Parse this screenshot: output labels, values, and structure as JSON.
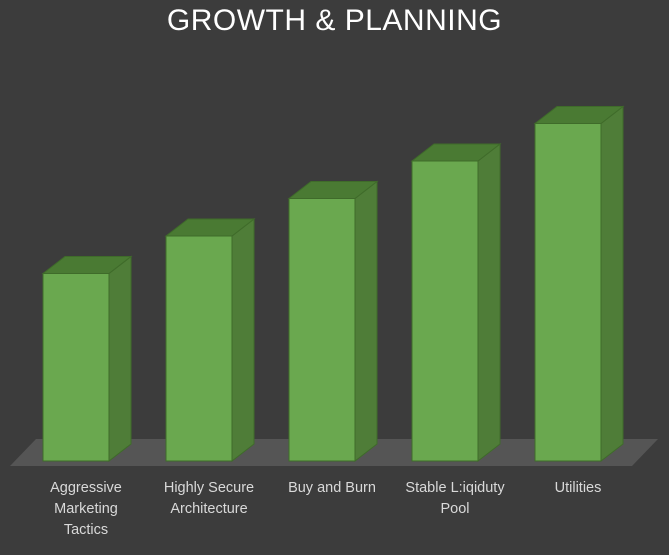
{
  "chart_data": {
    "type": "bar",
    "title": "GROWTH & PLANNING",
    "categories": [
      [
        "Aggressive",
        "Marketing",
        "Tactics"
      ],
      [
        "Highly Secure",
        "Architecture"
      ],
      [
        "Buy and Burn"
      ],
      [
        "Stable L:iqiduty",
        "Pool"
      ],
      [
        "Utilities"
      ]
    ],
    "values": [
      50,
      60,
      70,
      80,
      90
    ],
    "ylim": [
      0,
      100
    ],
    "xlabel": "",
    "ylabel": "",
    "grid": false,
    "legend": "none",
    "style": "3d-column"
  },
  "colors": {
    "background": "#3c3c3c",
    "floor": "#555555",
    "bar_front": "#6aa84f",
    "bar_side": "#4f7d38",
    "bar_top": "#4a7a33",
    "bar_edge": "#3f6b2a"
  }
}
